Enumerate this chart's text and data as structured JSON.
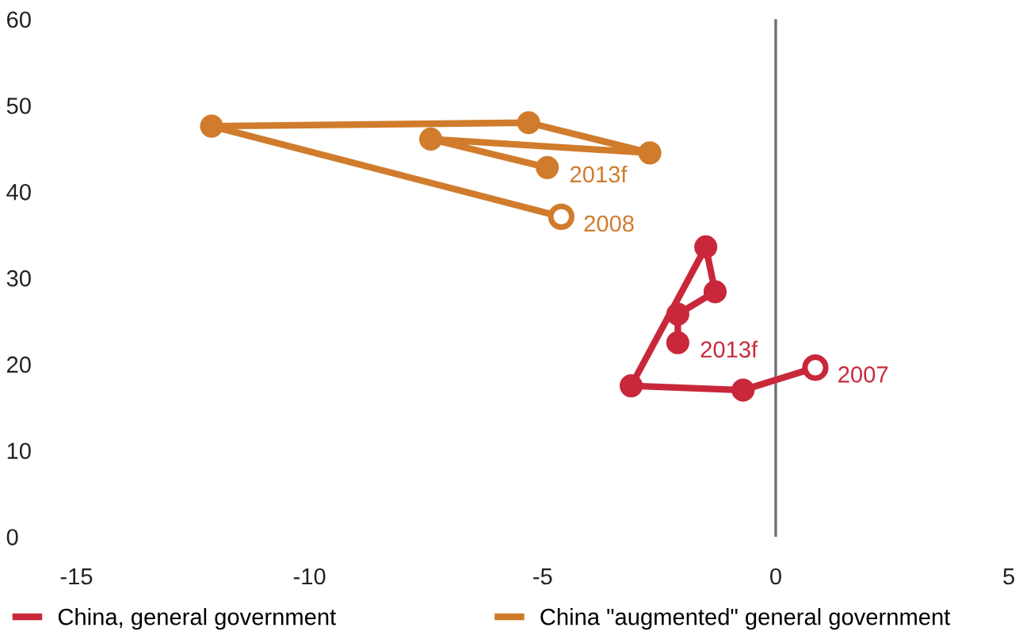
{
  "chart_data": {
    "type": "line",
    "series": [
      {
        "name": "China, general government",
        "color": "#c8283a",
        "x": [
          0.85,
          -0.7,
          -3.1,
          -1.5,
          -1.3,
          -2.1,
          -2.1
        ],
        "values": [
          19.6,
          17.0,
          17.5,
          33.6,
          28.4,
          25.8,
          22.5
        ]
      },
      {
        "name": "China \"augmented\" general government",
        "color": "#d07c2c",
        "x": [
          -4.6,
          -12.1,
          -5.3,
          -2.7,
          -7.4,
          -4.9
        ],
        "values": [
          37.1,
          47.6,
          48.0,
          44.5,
          46.1,
          42.8
        ]
      }
    ],
    "annotations": [
      {
        "text": "2007",
        "x": 0.85,
        "y": 19.6
      },
      {
        "text": "2013f",
        "x": -2.1,
        "y": 22.5
      },
      {
        "text": "2008",
        "x": -4.6,
        "y": 37.1
      },
      {
        "text": "2013f",
        "x": -4.9,
        "y": 42.8
      }
    ],
    "xlim": [
      -15,
      5
    ],
    "xticks": [
      -15,
      -10,
      -5,
      0,
      5
    ],
    "ylim": [
      0,
      60
    ],
    "yticks": [
      0,
      10,
      20,
      30,
      40,
      50,
      60
    ],
    "ref_lines": [
      {
        "axis": "x",
        "value": 0,
        "color": "#6e6e6e"
      }
    ],
    "marker": "circle",
    "line_style": "solid",
    "grid": false,
    "legend": "bottom"
  }
}
